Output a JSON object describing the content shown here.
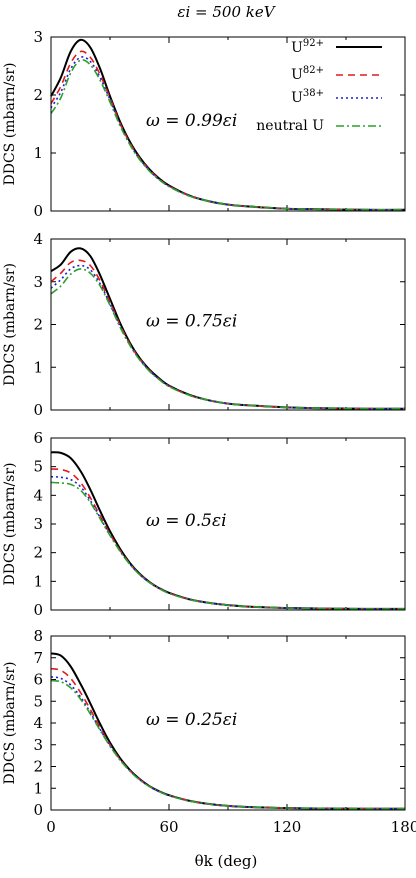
{
  "figure": {
    "title": "εi = 500 keV",
    "xlabel": "θk (deg)"
  },
  "colors": {
    "U92": "#000000",
    "U82": "#e41a1c",
    "U38": "#1f1fd6",
    "neutral": "#2ca02c"
  },
  "chart_data": [
    {
      "type": "line",
      "annotation": "ω = 0.99εi",
      "ylabel": "DDCS (mbarn/sr)",
      "xlim": [
        0,
        180
      ],
      "ylim": [
        0,
        3
      ],
      "yticks": [
        "0",
        "1",
        "2",
        "3"
      ],
      "xticks": [],
      "legend": {
        "placement": "top-right"
      },
      "x": [
        0,
        5,
        10,
        15,
        20,
        25,
        30,
        35,
        40,
        45,
        50,
        55,
        60,
        70,
        80,
        90,
        100,
        120,
        140,
        160,
        180
      ],
      "series": [
        {
          "name": "U92+",
          "values": [
            1.98,
            2.3,
            2.75,
            2.95,
            2.82,
            2.45,
            1.98,
            1.55,
            1.2,
            0.93,
            0.72,
            0.56,
            0.44,
            0.27,
            0.17,
            0.11,
            0.08,
            0.04,
            0.03,
            0.02,
            0.02
          ]
        },
        {
          "name": "U82+",
          "values": [
            1.85,
            2.15,
            2.55,
            2.75,
            2.65,
            2.35,
            1.95,
            1.52,
            1.18,
            0.91,
            0.71,
            0.55,
            0.43,
            0.27,
            0.17,
            0.11,
            0.08,
            0.04,
            0.03,
            0.02,
            0.02
          ]
        },
        {
          "name": "U38+",
          "values": [
            1.78,
            2.05,
            2.45,
            2.65,
            2.58,
            2.3,
            1.92,
            1.5,
            1.16,
            0.9,
            0.7,
            0.54,
            0.43,
            0.27,
            0.17,
            0.11,
            0.08,
            0.04,
            0.03,
            0.02,
            0.02
          ]
        },
        {
          "name": "neutral U",
          "values": [
            1.68,
            1.95,
            2.38,
            2.6,
            2.52,
            2.25,
            1.88,
            1.48,
            1.15,
            0.89,
            0.69,
            0.54,
            0.42,
            0.26,
            0.17,
            0.11,
            0.08,
            0.04,
            0.03,
            0.02,
            0.02
          ]
        }
      ]
    },
    {
      "type": "line",
      "annotation": "ω = 0.75εi",
      "ylabel": "DDCS (mbarn/sr)",
      "xlim": [
        0,
        180
      ],
      "ylim": [
        0,
        4
      ],
      "yticks": [
        "0",
        "1",
        "2",
        "3",
        "4"
      ],
      "xticks": [],
      "x": [
        0,
        5,
        10,
        15,
        20,
        25,
        30,
        35,
        40,
        45,
        50,
        55,
        60,
        70,
        80,
        90,
        100,
        120,
        140,
        160,
        180
      ],
      "series": [
        {
          "name": "U92+",
          "values": [
            3.25,
            3.4,
            3.7,
            3.78,
            3.6,
            3.15,
            2.6,
            2.05,
            1.58,
            1.22,
            0.95,
            0.74,
            0.57,
            0.36,
            0.23,
            0.15,
            0.11,
            0.06,
            0.04,
            0.03,
            0.03
          ]
        },
        {
          "name": "U82+",
          "values": [
            3.0,
            3.2,
            3.45,
            3.5,
            3.38,
            3.02,
            2.52,
            2.0,
            1.55,
            1.2,
            0.93,
            0.72,
            0.56,
            0.35,
            0.23,
            0.15,
            0.11,
            0.06,
            0.04,
            0.03,
            0.03
          ]
        },
        {
          "name": "U38+",
          "values": [
            2.85,
            3.05,
            3.3,
            3.38,
            3.28,
            2.95,
            2.48,
            1.97,
            1.53,
            1.19,
            0.92,
            0.72,
            0.56,
            0.35,
            0.23,
            0.15,
            0.11,
            0.06,
            0.04,
            0.03,
            0.03
          ]
        },
        {
          "name": "neutral U",
          "values": [
            2.72,
            2.9,
            3.18,
            3.3,
            3.2,
            2.9,
            2.45,
            1.95,
            1.52,
            1.18,
            0.91,
            0.71,
            0.55,
            0.35,
            0.23,
            0.15,
            0.11,
            0.06,
            0.04,
            0.03,
            0.03
          ]
        }
      ]
    },
    {
      "type": "line",
      "annotation": "ω = 0.5εi",
      "ylabel": "DDCS (mbarn/sr)",
      "xlim": [
        0,
        180
      ],
      "ylim": [
        0,
        6
      ],
      "yticks": [
        "0",
        "1",
        "2",
        "3",
        "4",
        "5",
        "6"
      ],
      "xticks": [],
      "x": [
        0,
        5,
        10,
        15,
        20,
        25,
        30,
        35,
        40,
        45,
        50,
        55,
        60,
        70,
        80,
        90,
        100,
        120,
        140,
        160,
        180
      ],
      "series": [
        {
          "name": "U92+",
          "values": [
            5.5,
            5.48,
            5.3,
            4.85,
            4.2,
            3.45,
            2.75,
            2.15,
            1.65,
            1.27,
            0.98,
            0.76,
            0.6,
            0.38,
            0.25,
            0.17,
            0.12,
            0.07,
            0.05,
            0.04,
            0.04
          ]
        },
        {
          "name": "U82+",
          "values": [
            4.92,
            4.9,
            4.78,
            4.45,
            3.92,
            3.28,
            2.65,
            2.09,
            1.62,
            1.25,
            0.97,
            0.75,
            0.59,
            0.38,
            0.25,
            0.17,
            0.12,
            0.07,
            0.05,
            0.04,
            0.04
          ]
        },
        {
          "name": "U38+",
          "values": [
            4.65,
            4.63,
            4.55,
            4.3,
            3.82,
            3.22,
            2.62,
            2.07,
            1.61,
            1.24,
            0.96,
            0.75,
            0.59,
            0.38,
            0.25,
            0.17,
            0.12,
            0.07,
            0.05,
            0.04,
            0.04
          ]
        },
        {
          "name": "neutral U",
          "values": [
            4.45,
            4.43,
            4.38,
            4.18,
            3.75,
            3.18,
            2.6,
            2.06,
            1.6,
            1.24,
            0.96,
            0.75,
            0.58,
            0.37,
            0.25,
            0.17,
            0.12,
            0.07,
            0.05,
            0.04,
            0.04
          ]
        }
      ]
    },
    {
      "type": "line",
      "annotation": "ω = 0.25εi",
      "ylabel": "DDCS (mbarn/sr)",
      "xlim": [
        0,
        180
      ],
      "ylim": [
        0,
        8
      ],
      "yticks": [
        "0",
        "1",
        "2",
        "3",
        "4",
        "5",
        "6",
        "7",
        "8"
      ],
      "xticks": [
        "0",
        "60",
        "120",
        "180"
      ],
      "x": [
        0,
        5,
        10,
        15,
        20,
        25,
        30,
        35,
        40,
        45,
        50,
        55,
        60,
        70,
        80,
        90,
        100,
        120,
        140,
        160,
        180
      ],
      "series": [
        {
          "name": "U92+",
          "values": [
            7.2,
            7.1,
            6.6,
            5.8,
            4.9,
            3.95,
            3.1,
            2.4,
            1.85,
            1.43,
            1.1,
            0.86,
            0.68,
            0.43,
            0.28,
            0.19,
            0.14,
            0.09,
            0.07,
            0.06,
            0.06
          ]
        },
        {
          "name": "U82+",
          "values": [
            6.5,
            6.42,
            6.05,
            5.4,
            4.62,
            3.78,
            3.0,
            2.34,
            1.82,
            1.41,
            1.09,
            0.85,
            0.67,
            0.43,
            0.28,
            0.19,
            0.14,
            0.09,
            0.07,
            0.06,
            0.06
          ]
        },
        {
          "name": "U38+",
          "values": [
            6.12,
            6.05,
            5.75,
            5.2,
            4.48,
            3.7,
            2.96,
            2.32,
            1.81,
            1.4,
            1.08,
            0.84,
            0.66,
            0.42,
            0.28,
            0.19,
            0.14,
            0.09,
            0.07,
            0.06,
            0.06
          ]
        },
        {
          "name": "neutral U",
          "values": [
            5.95,
            5.9,
            5.62,
            5.1,
            4.42,
            3.66,
            2.94,
            2.31,
            1.8,
            1.39,
            1.08,
            0.84,
            0.66,
            0.42,
            0.28,
            0.19,
            0.14,
            0.09,
            0.07,
            0.06,
            0.06
          ]
        }
      ]
    }
  ]
}
